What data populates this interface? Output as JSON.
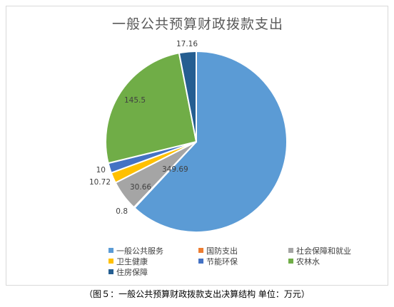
{
  "chart_data": {
    "type": "pie",
    "title": "一般公共预算财政拨款支出",
    "categories": [
      "一般公共服务",
      "国防支出",
      "社会保障和就业",
      "卫生健康",
      "节能环保",
      "农林水",
      "住房保障"
    ],
    "values": [
      349.69,
      0.8,
      30.66,
      10.72,
      10,
      145.5,
      17.16
    ],
    "labels": [
      "349.69",
      "0.8",
      "30.66",
      "10.72",
      "10",
      "145.5",
      "17.16"
    ],
    "colors": [
      "#5b9bd5",
      "#ed7d31",
      "#a5a5a5",
      "#ffc000",
      "#4472c4",
      "#70ad47",
      "#255e91"
    ],
    "legend_position": "bottom"
  },
  "caption": "（图５：一般公共预算财政拨款支出决算结构    单位：万元）"
}
